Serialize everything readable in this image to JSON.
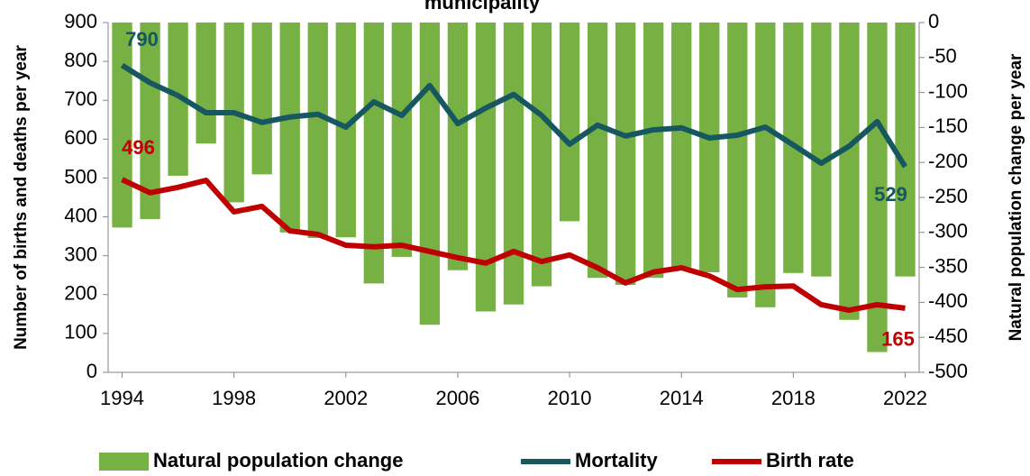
{
  "chart_data": {
    "type": "bar-line",
    "title": "municipality",
    "y_label": "Number of births and deaths per year",
    "y2_label": "Natural population change per year",
    "x": [
      1994,
      1995,
      1996,
      1997,
      1998,
      1999,
      2000,
      2001,
      2002,
      2003,
      2004,
      2005,
      2006,
      2007,
      2008,
      2009,
      2010,
      2011,
      2012,
      2013,
      2014,
      2015,
      2016,
      2017,
      2018,
      2019,
      2020,
      2021,
      2022
    ],
    "xlim": [
      1993.5,
      2022.5
    ],
    "xticks": [
      1994,
      1998,
      2002,
      2006,
      2010,
      2014,
      2018,
      2022
    ],
    "ylim": [
      0,
      900
    ],
    "yticks": [
      0,
      100,
      200,
      300,
      400,
      500,
      600,
      700,
      800,
      900
    ],
    "y2lim": [
      -500,
      0
    ],
    "y2ticks": [
      0,
      -50,
      -100,
      -150,
      -200,
      -250,
      -300,
      -350,
      -400,
      -450,
      -500
    ],
    "grid": false,
    "legend": "bottom",
    "series": [
      {
        "name": "Natural population change",
        "type": "bar",
        "axis": "y2",
        "color": "#77b143",
        "values": [
          -293,
          -281,
          -219,
          -173,
          -257,
          -217,
          -300,
          -308,
          -307,
          -373,
          -335,
          -432,
          -354,
          -413,
          -403,
          -377,
          -284,
          -365,
          -375,
          -365,
          -350,
          -357,
          -393,
          -407,
          -358,
          -363,
          -425,
          -471,
          -363
        ]
      },
      {
        "name": "Mortality",
        "type": "line",
        "color": "#17575f",
        "values": [
          790,
          745,
          712,
          668,
          668,
          643,
          657,
          664,
          631,
          696,
          661,
          738,
          640,
          680,
          715,
          661,
          587,
          636,
          608,
          624,
          629,
          603,
          610,
          631,
          585,
          538,
          582,
          645,
          529
        ]
      },
      {
        "name": "Birth rate",
        "type": "line",
        "color": "#c00000",
        "values": [
          496,
          462,
          476,
          494,
          413,
          427,
          364,
          355,
          327,
          323,
          327,
          311,
          295,
          281,
          311,
          285,
          302,
          269,
          230,
          258,
          269,
          248,
          213,
          220,
          222,
          174,
          160,
          174,
          165
        ]
      }
    ]
  }
}
